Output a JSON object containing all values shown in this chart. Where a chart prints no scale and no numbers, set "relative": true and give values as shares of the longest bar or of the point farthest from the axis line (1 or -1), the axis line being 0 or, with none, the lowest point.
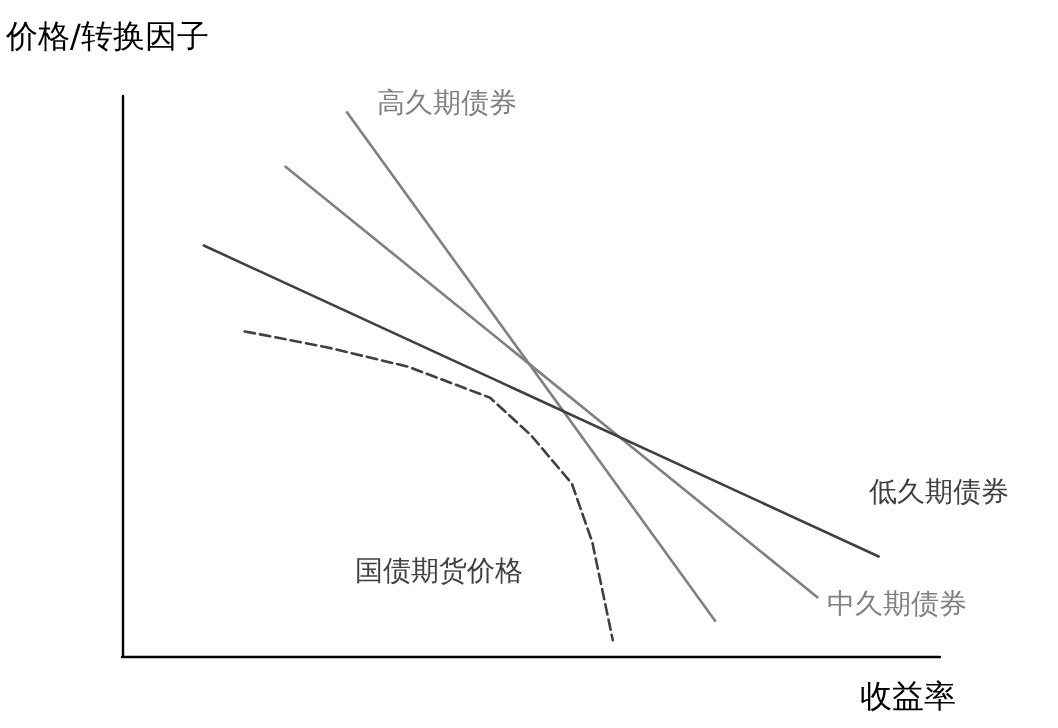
{
  "chart_data": {
    "type": "line",
    "relative": true,
    "xlabel": "收益率",
    "ylabel": "价格/转换因子",
    "grid": false,
    "marker": "none",
    "categories": [
      null,
      null,
      null,
      null,
      null,
      null,
      null,
      null,
      null,
      null,
      null,
      null,
      null,
      null,
      null,
      null,
      null,
      null,
      null,
      null,
      null,
      null,
      null,
      null,
      null,
      null,
      null,
      null,
      null,
      null,
      null,
      null,
      null,
      null,
      null,
      null,
      null,
      null,
      null,
      null,
      null
    ],
    "series": [
      {
        "name": "高久期债券",
        "color": "#808080",
        "values": [
          null,
          null,
          null,
          null,
          null,
          null,
          null,
          null,
          null,
          null,
          null,
          1.0,
          null,
          null,
          null,
          null,
          null,
          null,
          null,
          null,
          null,
          null,
          null,
          null,
          null,
          null,
          null,
          null,
          null,
          0.065,
          null,
          null,
          null,
          null,
          null,
          null,
          null,
          null,
          null,
          null,
          null
        ]
      },
      {
        "name": "中久期债券",
        "color": "#808080",
        "values": [
          null,
          null,
          null,
          null,
          null,
          null,
          null,
          null,
          0.9,
          null,
          null,
          null,
          null,
          null,
          null,
          null,
          null,
          null,
          null,
          null,
          null,
          null,
          null,
          null,
          null,
          null,
          null,
          null,
          null,
          null,
          null,
          null,
          null,
          null,
          0.108,
          null,
          null,
          null,
          null,
          null,
          null
        ]
      },
      {
        "name": "低久期债券",
        "color": "#404040",
        "values": [
          null,
          null,
          null,
          null,
          0.755,
          null,
          null,
          null,
          null,
          null,
          null,
          null,
          null,
          null,
          null,
          null,
          null,
          null,
          null,
          null,
          null,
          null,
          null,
          null,
          null,
          null,
          null,
          null,
          null,
          null,
          null,
          null,
          null,
          null,
          null,
          null,
          null,
          0.183,
          null,
          null,
          null
        ]
      },
      {
        "name": "国债期货价格",
        "color": "#404040",
        "line_style": "dashed",
        "values": [
          null,
          null,
          null,
          null,
          null,
          null,
          0.597,
          null,
          null,
          null,
          0.568,
          null,
          null,
          null,
          0.532,
          null,
          null,
          null,
          0.475,
          null,
          0.406,
          null,
          0.317,
          0.209,
          0.029,
          null,
          null,
          null,
          null,
          null,
          null,
          null,
          null,
          null,
          null,
          null,
          null,
          null,
          null,
          null,
          null
        ]
      }
    ]
  }
}
